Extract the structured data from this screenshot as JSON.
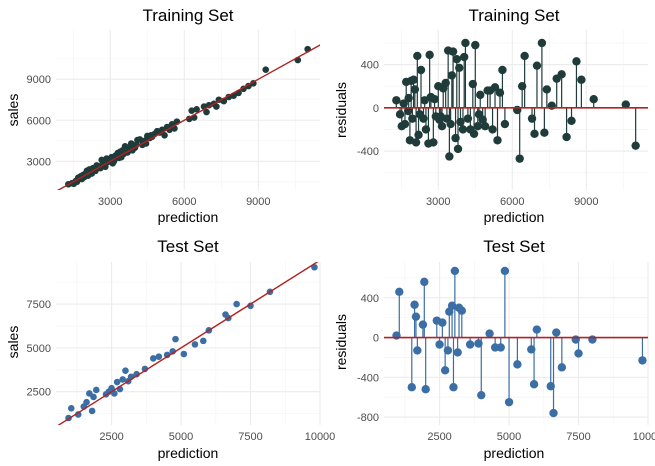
{
  "colors": {
    "train": "#1f3b3a",
    "test": "#3b6ea5",
    "line": "#b22222",
    "grid_major": "#ebebeb",
    "grid_minor": "#f5f5f5"
  },
  "chart_data": [
    {
      "type": "scatter",
      "title": "Training Set",
      "xlabel": "prediction",
      "ylabel": "sales",
      "xlim": [
        800,
        11500
      ],
      "ylim": [
        900,
        12600
      ],
      "xticks": [
        3000,
        6000,
        9000
      ],
      "yticks": [
        3000,
        6000,
        9000
      ],
      "xtick_labels": [
        "3000",
        "6000",
        "9000"
      ],
      "ytick_labels": [
        "3000",
        "6000",
        "9000"
      ],
      "reference_line": "y = x",
      "grid": true,
      "x": [
        1300,
        1450,
        1520,
        1600,
        1650,
        1700,
        1780,
        1800,
        1850,
        1900,
        1950,
        2000,
        2050,
        2100,
        2150,
        2200,
        2250,
        2300,
        2400,
        2450,
        2500,
        2600,
        2650,
        2700,
        2800,
        2850,
        2900,
        3000,
        3050,
        3100,
        3150,
        3200,
        3300,
        3350,
        3400,
        3450,
        3500,
        3550,
        3600,
        3700,
        3750,
        3800,
        3850,
        3900,
        4000,
        4050,
        4100,
        4200,
        4300,
        4400,
        4450,
        4500,
        4600,
        4650,
        4700,
        4800,
        4900,
        5000,
        5100,
        5200,
        5300,
        5400,
        5500,
        5600,
        5700,
        6200,
        6300,
        6400,
        6500,
        6800,
        6900,
        7000,
        7200,
        7300,
        7400,
        7600,
        7800,
        8000,
        8200,
        8400,
        8600,
        8800,
        9300,
        10600,
        11000
      ],
      "y": [
        1320,
        1400,
        1350,
        1550,
        1500,
        1800,
        1750,
        1900,
        1700,
        2000,
        1850,
        2100,
        2300,
        1950,
        2400,
        2250,
        2100,
        2500,
        2300,
        2700,
        2650,
        2500,
        3100,
        2800,
        2600,
        3200,
        2950,
        3100,
        3300,
        2850,
        3000,
        3400,
        3600,
        3250,
        3700,
        3300,
        3800,
        3550,
        4100,
        3650,
        4000,
        3900,
        4300,
        3800,
        4000,
        4200,
        4550,
        4600,
        4200,
        4500,
        4300,
        4850,
        4700,
        4900,
        4800,
        5000,
        5200,
        5100,
        5300,
        4900,
        5500,
        5300,
        5700,
        5400,
        5900,
        6100,
        6700,
        6200,
        6800,
        7000,
        6600,
        7100,
        7200,
        7000,
        7500,
        7400,
        7700,
        7800,
        8000,
        8300,
        8500,
        8700,
        9700,
        10400,
        11200
      ]
    },
    {
      "type": "scatter",
      "title": "Training Set",
      "xlabel": "prediction",
      "ylabel": "residuals",
      "xlim": [
        800,
        11500
      ],
      "ylim": [
        -760,
        720
      ],
      "xticks": [
        3000,
        6000,
        9000
      ],
      "yticks": [
        -400,
        0,
        400
      ],
      "xtick_labels": [
        "3000",
        "6000",
        "9000"
      ],
      "ytick_labels": [
        "-400",
        "0",
        "400"
      ],
      "reference_line": "y = 0",
      "grid": true,
      "x": [
        1300,
        1450,
        1520,
        1600,
        1650,
        1700,
        1780,
        1800,
        1850,
        1900,
        1950,
        2000,
        2050,
        2100,
        2150,
        2200,
        2250,
        2300,
        2400,
        2450,
        2500,
        2600,
        2650,
        2700,
        2800,
        2850,
        2900,
        3000,
        3050,
        3100,
        3150,
        3200,
        3300,
        3350,
        3400,
        3450,
        3500,
        3550,
        3600,
        3700,
        3750,
        3800,
        3850,
        3900,
        4000,
        4050,
        4100,
        4200,
        4300,
        4400,
        4450,
        4500,
        4600,
        4650,
        4700,
        4800,
        4900,
        5000,
        5100,
        5200,
        5300,
        5400,
        5500,
        5600,
        5700,
        6200,
        6300,
        6400,
        6500,
        6800,
        6900,
        7000,
        7200,
        7300,
        7400,
        7600,
        7800,
        8000,
        8200,
        8400,
        8600,
        8800,
        9300,
        10600,
        11000
      ],
      "y": [
        70,
        -60,
        -170,
        40,
        -150,
        240,
        -30,
        90,
        -300,
        250,
        -100,
        260,
        170,
        -320,
        480,
        -250,
        -60,
        350,
        -100,
        70,
        -200,
        -330,
        490,
        100,
        -320,
        80,
        -80,
        200,
        -110,
        -80,
        -170,
        180,
        230,
        -100,
        530,
        -450,
        -150,
        300,
        520,
        -280,
        450,
        -380,
        370,
        -130,
        -200,
        470,
        600,
        -100,
        -200,
        220,
        -240,
        580,
        -170,
        -60,
        120,
        -110,
        -170,
        160,
        160,
        -200,
        190,
        -300,
        140,
        350,
        -150,
        -20,
        -470,
        200,
        480,
        -100,
        -240,
        390,
        600,
        -230,
        170,
        20,
        270,
        310,
        -270,
        -120,
        430,
        260,
        80,
        30,
        -350
      ]
    },
    {
      "type": "scatter",
      "title": "Test Set",
      "xlabel": "prediction",
      "ylabel": "sales",
      "xlim": [
        500,
        10000
      ],
      "ylim": [
        600,
        9900
      ],
      "xticks": [
        2500,
        5000,
        7500,
        10000
      ],
      "yticks": [
        2500,
        5000,
        7500
      ],
      "xtick_labels": [
        "2500",
        "5000",
        "7500",
        "10000"
      ],
      "ytick_labels": [
        "2500",
        "5000",
        "7500"
      ],
      "reference_line": "y = x",
      "grid": true,
      "x": [
        950,
        1050,
        1300,
        1500,
        1600,
        1700,
        1800,
        1850,
        1950,
        2300,
        2400,
        2500,
        2600,
        2700,
        2800,
        2900,
        3000,
        3100,
        3200,
        3400,
        3700,
        4000,
        4200,
        4500,
        4700,
        4800,
        5100,
        5500,
        5800,
        6000,
        6600,
        6700,
        7000,
        7500,
        8200,
        9800
      ],
      "y": [
        1000,
        1550,
        1200,
        1650,
        1900,
        2400,
        1400,
        2200,
        2600,
        2350,
        2500,
        2700,
        2400,
        3050,
        2650,
        3200,
        3700,
        3100,
        3350,
        3500,
        3800,
        4400,
        4500,
        4600,
        4800,
        5500,
        4650,
        5200,
        5400,
        6000,
        6900,
        6700,
        7500,
        7400,
        8200,
        9600
      ]
    },
    {
      "type": "scatter",
      "title": "Test Set",
      "xlabel": "prediction",
      "ylabel": "residuals",
      "xlim": [
        500,
        10000
      ],
      "ylim": [
        -880,
        760
      ],
      "xticks": [
        2500,
        5000,
        7500,
        10000
      ],
      "yticks": [
        -800,
        -400,
        0,
        400
      ],
      "xtick_labels": [
        "2500",
        "5000",
        "7500",
        "10000"
      ],
      "ytick_labels": [
        "-800",
        "-400",
        "0",
        "400"
      ],
      "reference_line": "y = 0",
      "grid": true,
      "x": [
        950,
        1050,
        1500,
        1600,
        1650,
        1700,
        1900,
        1950,
        2000,
        2400,
        2500,
        2600,
        2700,
        2800,
        2850,
        2950,
        3000,
        3050,
        3150,
        3200,
        3300,
        3600,
        3900,
        4000,
        4300,
        4500,
        4700,
        4850,
        5000,
        5300,
        5800,
        5900,
        6000,
        6500,
        6600,
        6700,
        6900,
        7400,
        7500,
        8000,
        9800
      ],
      "y": [
        20,
        460,
        -500,
        330,
        210,
        -130,
        130,
        560,
        -520,
        170,
        -70,
        150,
        -330,
        -130,
        260,
        320,
        -500,
        670,
        -150,
        300,
        270,
        -70,
        -60,
        -580,
        40,
        -100,
        -100,
        670,
        -650,
        -270,
        -120,
        -470,
        80,
        -490,
        -760,
        50,
        -300,
        -20,
        -160,
        -20,
        -230
      ]
    }
  ]
}
